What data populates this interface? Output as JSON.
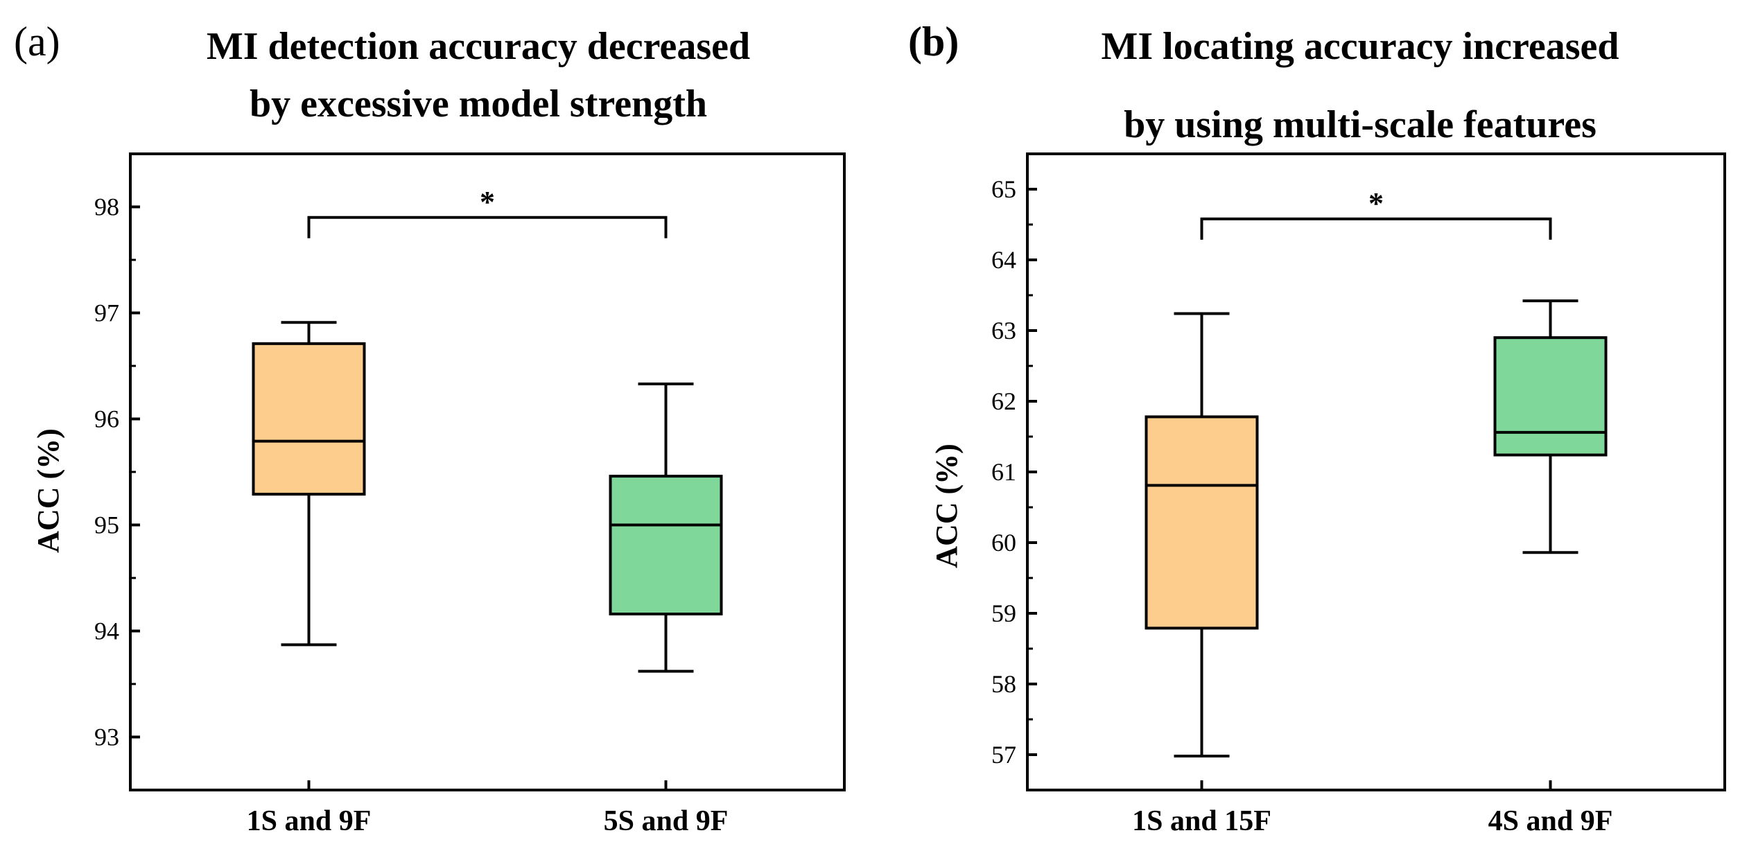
{
  "chart_data": [
    {
      "type": "box",
      "panel_label": "(a)",
      "title_lines": [
        "MI detection accuracy decreased",
        "by excessive model strength"
      ],
      "ylabel": "ACC (%)",
      "ylim": [
        92.5,
        98.5
      ],
      "yticks": [
        93,
        94,
        95,
        96,
        97,
        98
      ],
      "categories": [
        "1S and 9F",
        "5S and 9F"
      ],
      "boxes": [
        {
          "name": "1S and 9F",
          "whisker_low": 93.87,
          "q1": 95.29,
          "median": 95.79,
          "q3": 96.71,
          "whisker_high": 96.91,
          "color": "#fdcd8e"
        },
        {
          "name": "5S and 9F",
          "whisker_low": 93.62,
          "q1": 94.16,
          "median": 95.0,
          "q3": 95.46,
          "whisker_high": 96.33,
          "color": "#7fd89a"
        }
      ],
      "significance": {
        "from": 0,
        "to": 1,
        "y": 97.9,
        "label": "*"
      }
    },
    {
      "type": "box",
      "panel_label": "(b)",
      "title_lines": [
        "MI locating accuracy increased",
        "by using multi-scale features"
      ],
      "ylabel": "ACC (%)",
      "ylim": [
        56.5,
        65.5
      ],
      "yticks": [
        57,
        58,
        59,
        60,
        61,
        62,
        63,
        64,
        65
      ],
      "categories": [
        "1S and 15F",
        "4S and 9F"
      ],
      "boxes": [
        {
          "name": "1S and 15F",
          "whisker_low": 56.98,
          "q1": 58.79,
          "median": 60.81,
          "q3": 61.78,
          "whisker_high": 63.24,
          "color": "#fdcd8e"
        },
        {
          "name": "4S and 9F",
          "whisker_low": 59.86,
          "q1": 61.24,
          "median": 61.56,
          "q3": 62.9,
          "whisker_high": 63.42,
          "color": "#7fd89a"
        }
      ],
      "significance": {
        "from": 0,
        "to": 1,
        "y": 64.58,
        "label": "*"
      }
    }
  ]
}
